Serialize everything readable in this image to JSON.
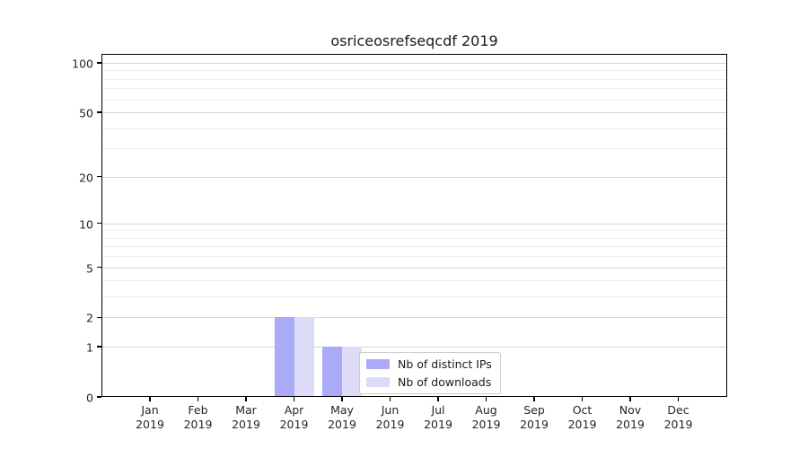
{
  "chart_data": {
    "type": "bar",
    "title": "osriceosrefseqcdf 2019",
    "year": "2019",
    "categories": [
      "Jan",
      "Feb",
      "Mar",
      "Apr",
      "May",
      "Jun",
      "Jul",
      "Aug",
      "Sep",
      "Oct",
      "Nov",
      "Dec"
    ],
    "series": [
      {
        "name": "Nb of distinct IPs",
        "color": "#aaaaf6",
        "values": [
          0,
          0,
          0,
          2,
          1,
          0,
          0,
          0,
          0,
          0,
          0,
          0
        ]
      },
      {
        "name": "Nb of downloads",
        "color": "#dcdcf7",
        "values": [
          0,
          0,
          0,
          2,
          1,
          0,
          0,
          0,
          0,
          0,
          0,
          0
        ]
      }
    ],
    "yscale": "log1p",
    "ylim": [
      0,
      113
    ],
    "y_major_ticks": [
      0,
      1,
      2,
      5,
      10,
      20,
      50,
      100
    ],
    "y_minor_ticks": [
      3,
      4,
      6,
      7,
      8,
      9,
      30,
      40,
      60,
      70,
      80,
      90
    ],
    "grid": "horizontal",
    "legend_position": "lower-center-inside",
    "axis_color": "#000000",
    "major_grid_color": "#d6d6d6",
    "minor_grid_color": "#ececec"
  }
}
